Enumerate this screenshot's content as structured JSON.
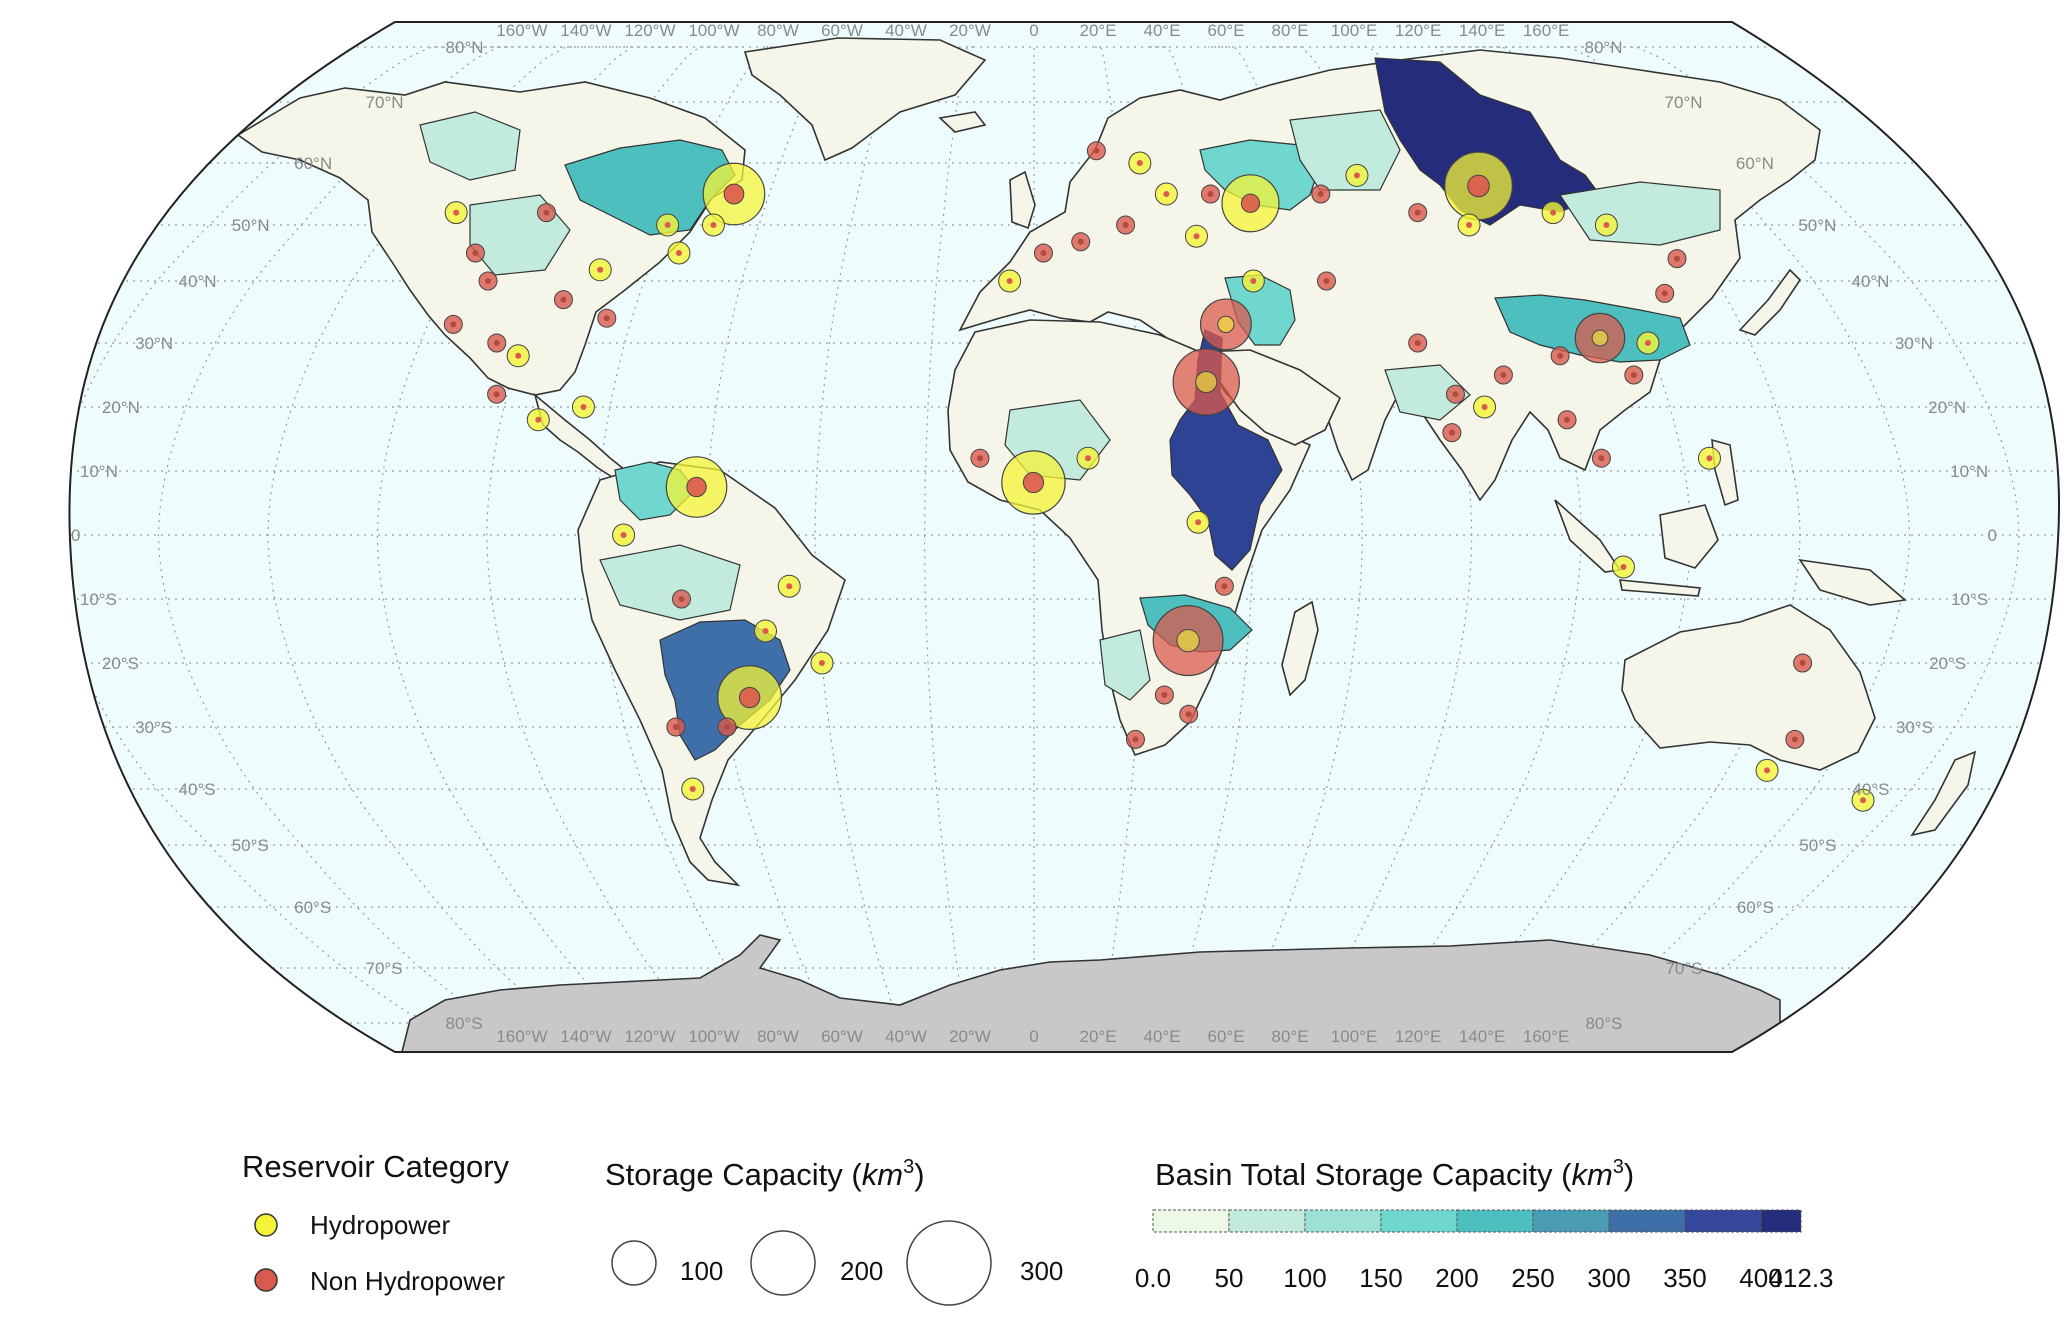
{
  "map": {
    "projection": "Robinson-like world map",
    "ocean_color": "#effcfd",
    "land_color": "#f5f6e9",
    "antarctica_color": "#c8c8c8",
    "graticule": "dotted",
    "graticule_color": "#9a9a9a",
    "lon_labels": [
      "160°W",
      "140°W",
      "120°W",
      "100°W",
      "80°W",
      "60°W",
      "40°W",
      "20°W",
      "0",
      "20°E",
      "40°E",
      "60°E",
      "80°E",
      "100°E",
      "120°E",
      "140°E",
      "160°E"
    ],
    "lat_labels_north": [
      "80°N",
      "70°N",
      "60°N",
      "50°N",
      "40°N",
      "30°N",
      "20°N",
      "10°N"
    ],
    "equator_label": "0",
    "lat_labels_south": [
      "10°S",
      "20°S",
      "30°S",
      "40°S",
      "50°S",
      "60°S",
      "70°S",
      "80°S"
    ]
  },
  "legend": {
    "category": {
      "title": "Reservoir Category",
      "items": [
        {
          "label": "Hydropower",
          "color": "#f4f437"
        },
        {
          "label": "Non Hydropower",
          "color": "#db5a4e"
        }
      ]
    },
    "size": {
      "title_prefix": "Storage Capacity (",
      "title_unit": "km",
      "title_exp": "3",
      "title_suffix": ")",
      "items": [
        {
          "label": "100",
          "value": 100
        },
        {
          "label": "200",
          "value": 200
        },
        {
          "label": "300",
          "value": 300
        }
      ]
    },
    "basin": {
      "title_prefix": "Basin Total Storage Capacity (",
      "title_unit": "km",
      "title_exp": "3",
      "title_suffix": ")",
      "bins": [
        "0.0",
        "50",
        "100",
        "150",
        "200",
        "250",
        "300",
        "350",
        "400",
        "412.3"
      ],
      "colors": [
        "#edf8e6",
        "#c2ebde",
        "#9de1d6",
        "#6fd7cd",
        "#4dbfbf",
        "#4a9bb4",
        "#3f6fa8",
        "#34479a",
        "#262c7c"
      ]
    }
  },
  "basins": [
    {
      "name": "Yenisei",
      "storage_bin": 8,
      "color": "#262c7c"
    },
    {
      "name": "Nile",
      "storage_bin": 7,
      "color": "#2f4394"
    },
    {
      "name": "Parana",
      "storage_bin": 6,
      "color": "#3f6fa8"
    },
    {
      "name": "Zambezi",
      "storage_bin": 4,
      "color": "#4dbfbf"
    },
    {
      "name": "Yangtze",
      "storage_bin": 4,
      "color": "#4dbfbf"
    },
    {
      "name": "Nelson",
      "storage_bin": 4,
      "color": "#4dbfbf"
    },
    {
      "name": "Volga",
      "storage_bin": 3,
      "color": "#6fd7cd"
    },
    {
      "name": "Tigris-Euphrates",
      "storage_bin": 3,
      "color": "#6fd7cd"
    },
    {
      "name": "Orinoco",
      "storage_bin": 3,
      "color": "#6fd7cd"
    }
  ],
  "reservoirs": [
    {
      "lon": 32.9,
      "lat": 23.9,
      "type": "non_hydro",
      "storage_km3": 162
    },
    {
      "lon": 28.8,
      "lat": -16.5,
      "type": "non_hydro",
      "storage_km3": 180
    },
    {
      "lon": 101.8,
      "lat": 56.3,
      "type": "hydro",
      "storage_km3": 169
    },
    {
      "lon": -54.6,
      "lat": -25.4,
      "type": "hydro",
      "storage_km3": 150
    },
    {
      "lon": -0.1,
      "lat": 8.2,
      "type": "hydro",
      "storage_km3": 148
    },
    {
      "lon": 111.0,
      "lat": 30.8,
      "type": "non_hydro",
      "storage_km3": 90
    },
    {
      "lon": 38.0,
      "lat": 33.0,
      "type": "non_hydro",
      "storage_km3": 95
    },
    {
      "lon": -68.0,
      "lat": 55.0,
      "type": "hydro",
      "storage_km3": 140
    },
    {
      "lon": -62.0,
      "lat": 7.5,
      "type": "hydro",
      "storage_km3": 135
    },
    {
      "lon": 48.5,
      "lat": 53.5,
      "type": "hydro",
      "storage_km3": 120
    }
  ]
}
